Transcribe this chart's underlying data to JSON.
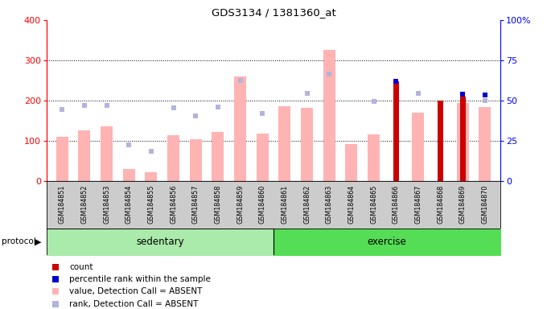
{
  "title": "GDS3134 / 1381360_at",
  "samples": [
    "GSM184851",
    "GSM184852",
    "GSM184853",
    "GSM184854",
    "GSM184855",
    "GSM184856",
    "GSM184857",
    "GSM184858",
    "GSM184859",
    "GSM184860",
    "GSM184861",
    "GSM184862",
    "GSM184863",
    "GSM184864",
    "GSM184865",
    "GSM184866",
    "GSM184867",
    "GSM184868",
    "GSM184869",
    "GSM184870"
  ],
  "value_absent": [
    110,
    125,
    135,
    30,
    22,
    113,
    103,
    122,
    260,
    117,
    185,
    182,
    325,
    92,
    115,
    null,
    170,
    null,
    193,
    183
  ],
  "rank_absent": [
    178,
    188,
    188,
    90,
    73,
    182,
    162,
    184,
    250,
    168,
    null,
    218,
    265,
    null,
    198,
    null,
    217,
    null,
    null,
    200
  ],
  "count": [
    null,
    null,
    null,
    null,
    null,
    null,
    null,
    null,
    null,
    null,
    null,
    null,
    null,
    null,
    null,
    247,
    null,
    200,
    210,
    null
  ],
  "pct_rank": [
    null,
    null,
    null,
    null,
    null,
    null,
    null,
    null,
    null,
    null,
    null,
    null,
    null,
    null,
    null,
    248,
    null,
    null,
    215,
    213
  ],
  "ylim_left": [
    0,
    400
  ],
  "ylim_right": [
    0,
    100
  ],
  "bar_color_absent": "#ffb3b3",
  "rank_color_absent": "#b3b3dd",
  "count_color": "#cc0000",
  "pct_rank_color": "#0000cc",
  "group_sed_color": "#aaeaaa",
  "group_ex_color": "#55dd55",
  "bg_color": "#cccccc",
  "legend_items": [
    "count",
    "percentile rank within the sample",
    "value, Detection Call = ABSENT",
    "rank, Detection Call = ABSENT"
  ],
  "legend_colors": [
    "#cc0000",
    "#0000cc",
    "#ffb3b3",
    "#b3b3dd"
  ]
}
